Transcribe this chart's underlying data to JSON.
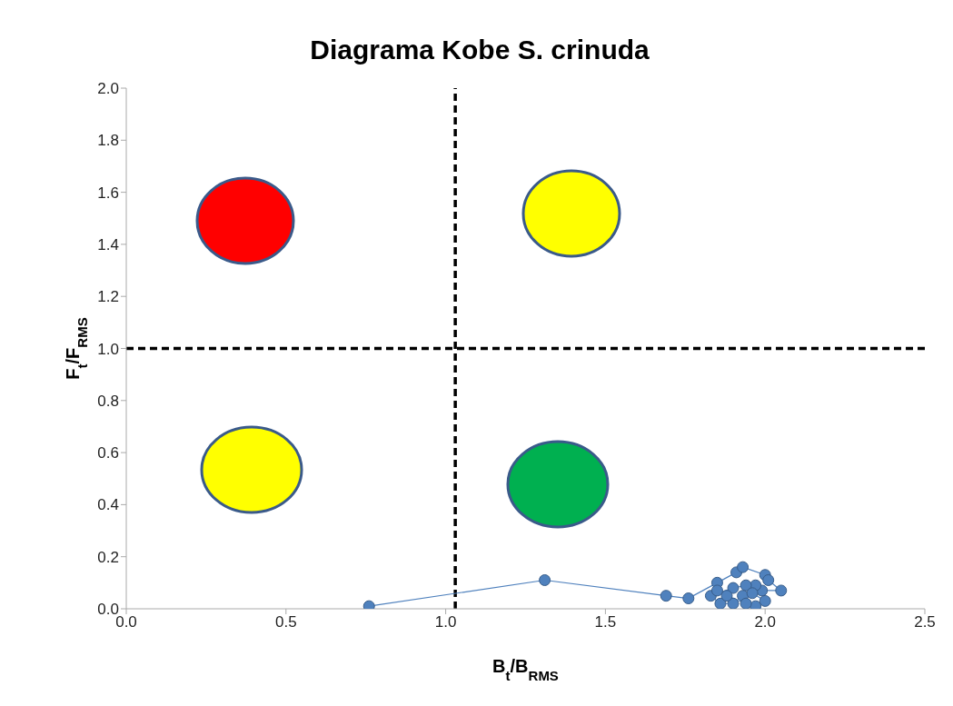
{
  "chart_data": {
    "type": "line",
    "title": "Diagrama Kobe S. crinuda",
    "xlabel": "B$_{t}$/B$_{RMS}$",
    "ylabel": "F$_{t}$/F$_{RMS}$",
    "xlim": [
      0,
      2.5
    ],
    "xticks": [
      {
        "value": 0,
        "label": "0.0"
      },
      {
        "value": 0.5,
        "label": "0.5"
      },
      {
        "value": 1,
        "label": "1.0"
      },
      {
        "value": 1.5,
        "label": "1.5"
      },
      {
        "value": 2,
        "label": "2.0"
      },
      {
        "value": 2.5,
        "label": "2.5"
      }
    ],
    "ylim": [
      0,
      2
    ],
    "yticks": [
      {
        "value": 0,
        "label": "0.0"
      },
      {
        "value": 0.2,
        "label": "0.2"
      },
      {
        "value": 0.4,
        "label": "0.4"
      },
      {
        "value": 0.6,
        "label": "0.6"
      },
      {
        "value": 0.8,
        "label": "0.8"
      },
      {
        "value": 1,
        "label": "1.0"
      },
      {
        "value": 1.2,
        "label": "1.2"
      },
      {
        "value": 1.4,
        "label": "1.4"
      },
      {
        "value": 1.6,
        "label": "1.6"
      },
      {
        "value": 1.8,
        "label": "1.8"
      },
      {
        "value": 2,
        "label": "2.0"
      }
    ],
    "grid": false,
    "legend": false,
    "marker": "circle",
    "line_style": "solid",
    "series": [
      {
        "color": "#4f81bd",
        "x": [
          0.76,
          1.31,
          1.69,
          1.76,
          1.85,
          1.91,
          1.93,
          2.0,
          2.01,
          2.05,
          1.99,
          1.97,
          1.94,
          1.9,
          1.83,
          1.86,
          1.9,
          1.93,
          1.96,
          2.0,
          1.97,
          1.94,
          1.88,
          1.85
        ],
        "values": [
          0.01,
          0.11,
          0.05,
          0.04,
          0.1,
          0.14,
          0.16,
          0.13,
          0.11,
          0.07,
          0.07,
          0.09,
          0.09,
          0.08,
          0.05,
          0.02,
          0.02,
          0.05,
          0.06,
          0.03,
          0.01,
          0.02,
          0.05,
          0.07
        ]
      }
    ],
    "ref_lines": [
      {
        "axis": "x",
        "value": 1.03,
        "color": "#000000",
        "line_style": "dashed"
      },
      {
        "axis": "y",
        "value": 1.0,
        "color": "#000000",
        "line_style": "dashed"
      }
    ]
  }
}
